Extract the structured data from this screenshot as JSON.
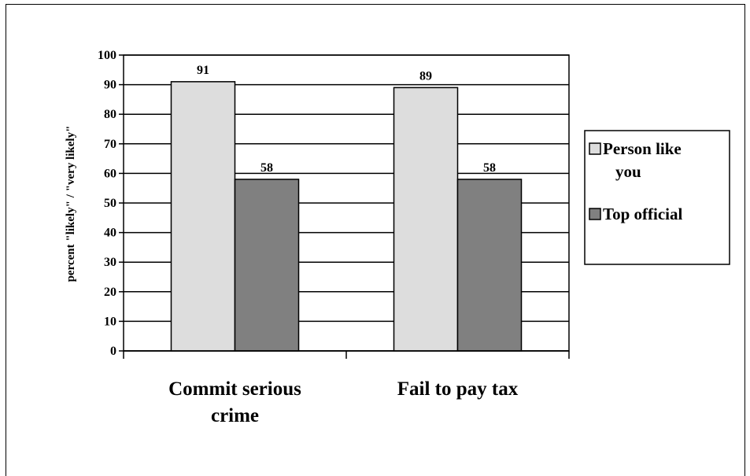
{
  "chart_data": {
    "type": "bar",
    "categories": [
      "Commit serious crime",
      "Fail to pay tax"
    ],
    "category_lines": [
      [
        "Commit serious",
        "crime"
      ],
      [
        "Fail to pay tax"
      ]
    ],
    "series": [
      {
        "name": "Person like you",
        "values": [
          91,
          89
        ],
        "color": "#DDDDDD"
      },
      {
        "name": "Top official",
        "values": [
          58,
          58
        ],
        "color": "#808080"
      }
    ],
    "data_labels": [
      [
        "91",
        "89"
      ],
      [
        "58",
        "58"
      ]
    ],
    "legend_lines": [
      [
        "Person like",
        "you"
      ],
      [
        "Top official"
      ]
    ],
    "ylabel": "percent \"likely\" / \"very likely\"",
    "xlabel": "",
    "ylim": [
      0,
      100
    ],
    "yticks": [
      0,
      10,
      20,
      30,
      40,
      50,
      60,
      70,
      80,
      90,
      100
    ],
    "grid": true,
    "legend_position": "right"
  }
}
